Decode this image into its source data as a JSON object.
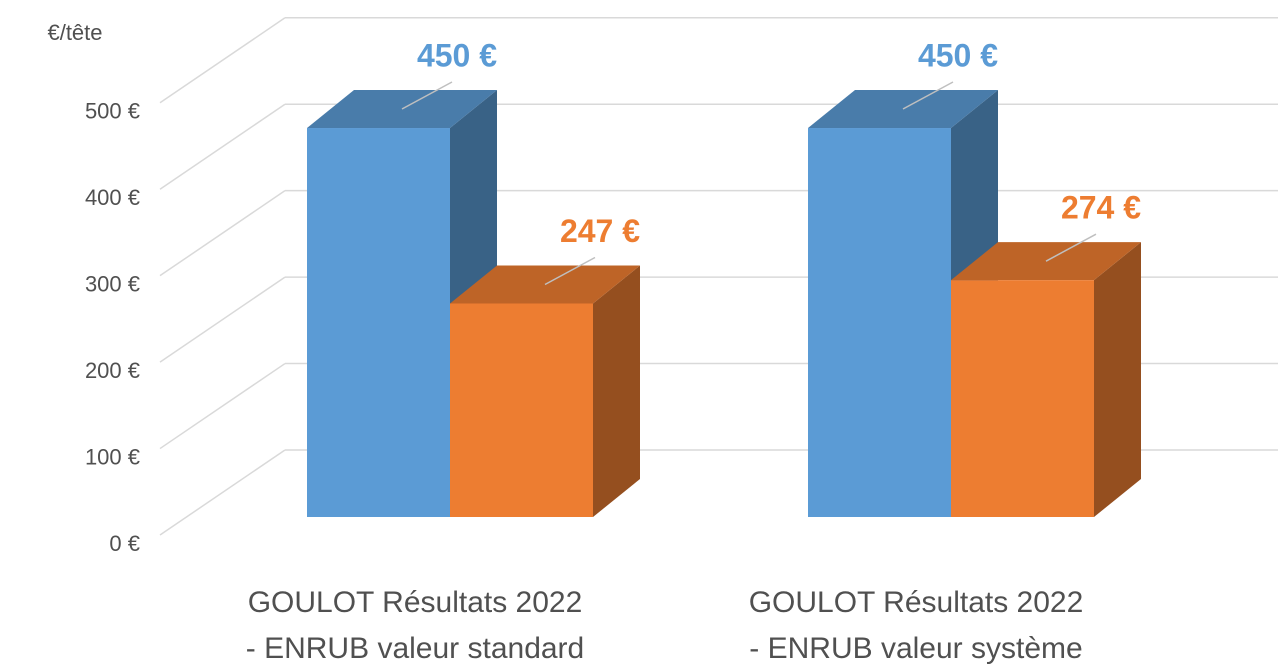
{
  "chart_data": {
    "type": "bar3d",
    "y_label": "€/tête",
    "categories": [
      "GOULOT Résultats 2022\n- ENRUB valeur standard",
      "GOULOT Résultats 2022\n- ENRUB valeur système"
    ],
    "series": [
      {
        "color": "#5b9bd5",
        "values": [
          450,
          450
        ],
        "value_labels": [
          "450 €",
          "450 €"
        ]
      },
      {
        "color": "#ed7d31",
        "values": [
          247,
          274
        ],
        "value_labels": [
          "247 €",
          "274 €"
        ]
      }
    ],
    "ylim": [
      0,
      500
    ],
    "yticks": [
      {
        "value": 0,
        "label": "0 €"
      },
      {
        "value": 100,
        "label": "100 €"
      },
      {
        "value": 200,
        "label": "200 €"
      },
      {
        "value": 300,
        "label": "300 €"
      },
      {
        "value": 400,
        "label": "400 €"
      },
      {
        "value": 500,
        "label": "500 €"
      }
    ],
    "grid": true
  }
}
